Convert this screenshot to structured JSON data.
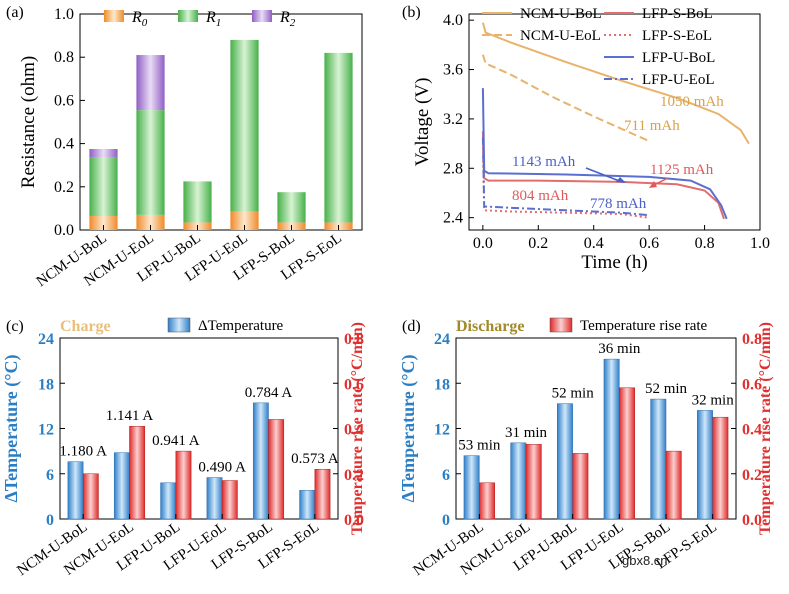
{
  "watermark": "gbx8.cn",
  "chart_data": [
    {
      "panel": "(a)",
      "type": "bar",
      "stacked": true,
      "categories": [
        "NCM-U-BoL",
        "NCM-U-EoL",
        "LFP-U-BoL",
        "LFP-U-EoL",
        "LFP-S-BoL",
        "LFP-S-EoL"
      ],
      "series": [
        {
          "name": "R",
          "sub": "0",
          "color": "#f5a04c",
          "values": [
            0.065,
            0.07,
            0.035,
            0.085,
            0.035,
            0.035
          ]
        },
        {
          "name": "R",
          "sub": "1",
          "color": "#6fcf6a",
          "values": [
            0.27,
            0.485,
            0.19,
            0.795,
            0.14,
            0.785
          ]
        },
        {
          "name": "R",
          "sub": "2",
          "color": "#a77bd1",
          "values": [
            0.04,
            0.255,
            0.0,
            0.0,
            0.0,
            0.0
          ]
        }
      ],
      "ylabel": "Resistance (ohm)",
      "ylim": [
        0,
        1.0
      ],
      "yticks": [
        "0.0",
        "0.2",
        "0.4",
        "0.6",
        "0.8",
        "1.0"
      ]
    },
    {
      "panel": "(b)",
      "type": "line",
      "xlabel": "Time (h)",
      "ylabel": "Voltage (V)",
      "xlim": [
        -0.05,
        1.0
      ],
      "ylim": [
        2.3,
        4.05
      ],
      "xticks": [
        "0.0",
        "0.2",
        "0.4",
        "0.6",
        "0.8",
        "1.0"
      ],
      "yticks": [
        "2.4",
        "2.8",
        "3.2",
        "3.6",
        "4.0"
      ],
      "series": [
        {
          "name": "NCM-U-BoL",
          "color": "#e8b36b",
          "dash": "solid",
          "points": [
            [
              0,
              3.98
            ],
            [
              0.01,
              3.9
            ],
            [
              0.1,
              3.82
            ],
            [
              0.3,
              3.66
            ],
            [
              0.5,
              3.51
            ],
            [
              0.7,
              3.37
            ],
            [
              0.85,
              3.24
            ],
            [
              0.93,
              3.11
            ],
            [
              0.96,
              3.0
            ]
          ]
        },
        {
          "name": "NCM-U-EoL",
          "color": "#e8b36b",
          "dash": "dash",
          "points": [
            [
              0,
              3.72
            ],
            [
              0.01,
              3.65
            ],
            [
              0.1,
              3.56
            ],
            [
              0.25,
              3.38
            ],
            [
              0.4,
              3.22
            ],
            [
              0.52,
              3.1
            ],
            [
              0.6,
              3.02
            ]
          ]
        },
        {
          "name": "LFP-S-BoL",
          "color": "#e26d6d",
          "dash": "solid",
          "points": [
            [
              0,
              3.1
            ],
            [
              0.005,
              2.72
            ],
            [
              0.02,
              2.7
            ],
            [
              0.2,
              2.7
            ],
            [
              0.5,
              2.69
            ],
            [
              0.7,
              2.67
            ],
            [
              0.8,
              2.62
            ],
            [
              0.85,
              2.52
            ],
            [
              0.87,
              2.39
            ]
          ]
        },
        {
          "name": "LFP-S-EoL",
          "color": "#e26d6d",
          "dash": "dot",
          "points": [
            [
              0,
              2.98
            ],
            [
              0.005,
              2.46
            ],
            [
              0.1,
              2.45
            ],
            [
              0.3,
              2.44
            ],
            [
              0.5,
              2.43
            ],
            [
              0.6,
              2.4
            ]
          ]
        },
        {
          "name": "LFP-U-BoL",
          "color": "#5a6fd0",
          "dash": "solid",
          "points": [
            [
              0,
              3.45
            ],
            [
              0.005,
              2.78
            ],
            [
              0.02,
              2.76
            ],
            [
              0.3,
              2.75
            ],
            [
              0.6,
              2.73
            ],
            [
              0.75,
              2.7
            ],
            [
              0.82,
              2.63
            ],
            [
              0.86,
              2.5
            ],
            [
              0.88,
              2.39
            ]
          ]
        },
        {
          "name": "LFP-U-EoL",
          "color": "#5a6fd0",
          "dash": "dashdot",
          "points": [
            [
              0,
              3.05
            ],
            [
              0.005,
              2.49
            ],
            [
              0.1,
              2.48
            ],
            [
              0.3,
              2.46
            ],
            [
              0.5,
              2.44
            ],
            [
              0.6,
              2.42
            ]
          ]
        }
      ],
      "annotations": [
        {
          "text": "1050 mAh",
          "color": "#d9a24a"
        },
        {
          "text": "711 mAh",
          "color": "#d9a24a"
        },
        {
          "text": "1143 mAh",
          "color": "#4a5fc8"
        },
        {
          "text": "1125 mAh",
          "color": "#e05a5a"
        },
        {
          "text": "804 mAh",
          "color": "#e05a5a"
        },
        {
          "text": "778 mAh",
          "color": "#4a5fc8"
        }
      ]
    },
    {
      "panel": "(c)",
      "type": "bar",
      "mode_label": "Charge",
      "mode_color": "#e8c07a",
      "categories": [
        "NCM-U-BoL",
        "NCM-U-EoL",
        "LFP-U-BoL",
        "LFP-U-EoL",
        "LFP-S-BoL",
        "LFP-S-EoL"
      ],
      "left_series": {
        "name": "ΔTemperature",
        "color": "#3a8fd0",
        "values": [
          7.6,
          8.8,
          4.8,
          5.5,
          15.4,
          3.8
        ]
      },
      "right_series": {
        "name": "Temperature rise rate",
        "color": "#e84545",
        "values": [
          0.2,
          0.41,
          0.3,
          0.17,
          0.44,
          0.22
        ]
      },
      "bar_labels": [
        "1.180 A",
        "1.141 A",
        "0.941 A",
        "0.490 A",
        "0.784 A",
        "0.573 A"
      ],
      "legend_label": "ΔTemperature",
      "ylabel_left": "ΔTemperature (°C)",
      "ylabel_right": "Temperature rise rate (°C/min)",
      "ylim_left": [
        0,
        24
      ],
      "ylim_right": [
        0,
        0.8
      ],
      "yticks_left": [
        "0",
        "6",
        "12",
        "18",
        "24"
      ],
      "yticks_right": [
        "0.0",
        "0.2",
        "0.4",
        "0.6",
        "0.8"
      ]
    },
    {
      "panel": "(d)",
      "type": "bar",
      "mode_label": "Discharge",
      "mode_color": "#a08a2a",
      "categories": [
        "NCM-U-BoL",
        "NCM-U-EoL",
        "LFP-U-BoL",
        "LFP-U-EoL",
        "LFP-S-BoL",
        "LFP-S-EoL"
      ],
      "left_series": {
        "name": "ΔTemperature",
        "color": "#3a8fd0",
        "values": [
          8.4,
          10.1,
          15.3,
          21.2,
          15.9,
          14.4
        ]
      },
      "right_series": {
        "name": "Temperature rise rate",
        "color": "#e84545",
        "values": [
          0.16,
          0.33,
          0.29,
          0.58,
          0.3,
          0.45
        ]
      },
      "bar_labels": [
        "53 min",
        "31 min",
        "52 min",
        "36 min",
        "52 min",
        "32 min"
      ],
      "legend_label": "Temperature rise rate",
      "ylabel_left": "ΔTemperature (°C)",
      "ylabel_right": "Temperature rise rate (°C/min)",
      "ylim_left": [
        0,
        24
      ],
      "ylim_right": [
        0,
        0.8
      ],
      "yticks_left": [
        "0",
        "6",
        "12",
        "18",
        "24"
      ],
      "yticks_right": [
        "0.0",
        "0.2",
        "0.4",
        "0.6",
        "0.8"
      ]
    }
  ]
}
